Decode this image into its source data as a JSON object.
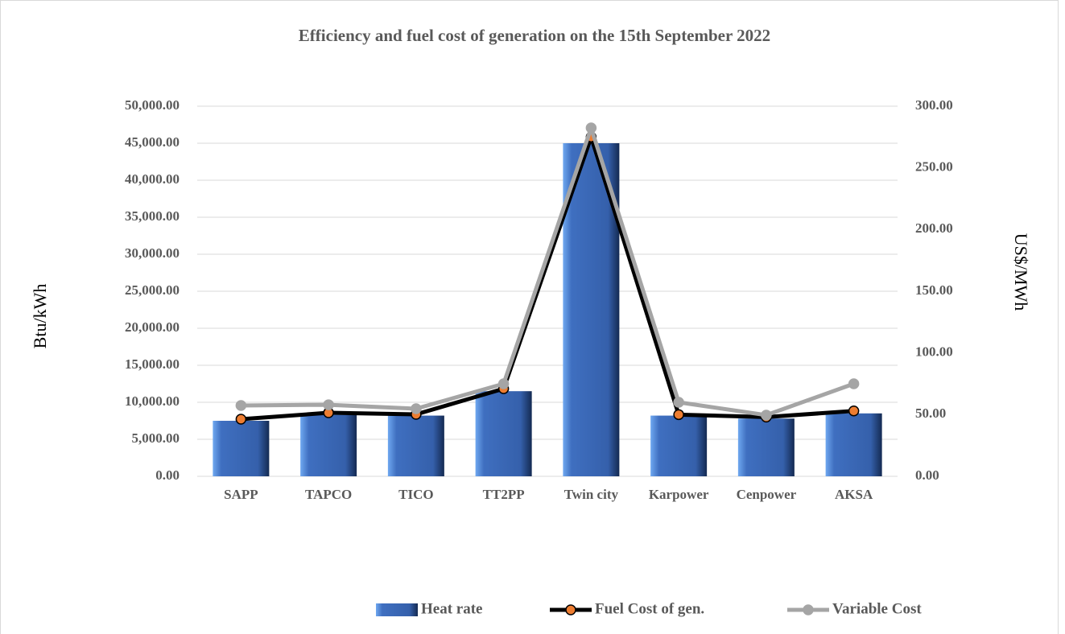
{
  "chart_data": {
    "type": "bar",
    "title": "Efficiency and fuel cost of generation on the 15th September 2022",
    "ylabel": "Btu/kWh",
    "y2label": "US$/MWh",
    "categories": [
      "SAPP",
      "TAPCO",
      "TICO",
      "TT2PP",
      "Twin city",
      "Karpower",
      "Cenpower",
      "AKSA"
    ],
    "series": [
      {
        "name": "Heat rate",
        "type": "bar",
        "color": "#4472c4",
        "values": [
          7500,
          8300,
          8200,
          11500,
          45000,
          8200,
          7800,
          8500
        ]
      },
      {
        "name": "Fuel Cost of gen.",
        "type": "line",
        "axis": "y2",
        "color": "#000000",
        "marker_color": "#ed7d31",
        "values": [
          46.3,
          51.5,
          50.2,
          71,
          275,
          50,
          48,
          53
        ]
      },
      {
        "name": "Variable Cost",
        "type": "line",
        "axis": "y2",
        "color": "#a5a5a5",
        "marker_color": "#a5a5a5",
        "values": [
          57.4,
          58,
          54.8,
          75,
          282.4,
          60,
          49.6,
          75
        ]
      }
    ],
    "ylim": [
      0,
      50000
    ],
    "yticks": [
      {
        "value": 0,
        "label": "0.00"
      },
      {
        "value": 5000,
        "label": "5,000.00"
      },
      {
        "value": 10000,
        "label": "10,000.00"
      },
      {
        "value": 15000,
        "label": "15,000.00"
      },
      {
        "value": 20000,
        "label": "20,000.00"
      },
      {
        "value": 25000,
        "label": "25,000.00"
      },
      {
        "value": 30000,
        "label": "30,000.00"
      },
      {
        "value": 35000,
        "label": "35,000.00"
      },
      {
        "value": 40000,
        "label": "40,000.00"
      },
      {
        "value": 45000,
        "label": "45,000.00"
      },
      {
        "value": 50000,
        "label": "50,000.00"
      }
    ],
    "y2lim": [
      0,
      300
    ],
    "y2ticks": [
      {
        "value": 0,
        "label": "0.00"
      },
      {
        "value": 50,
        "label": "50.00"
      },
      {
        "value": 100,
        "label": "100.00"
      },
      {
        "value": 150,
        "label": "150.00"
      },
      {
        "value": 200,
        "label": "200.00"
      },
      {
        "value": 250,
        "label": "250.00"
      },
      {
        "value": 300,
        "label": "300.00"
      }
    ],
    "grid": true,
    "legend": "bottom"
  }
}
